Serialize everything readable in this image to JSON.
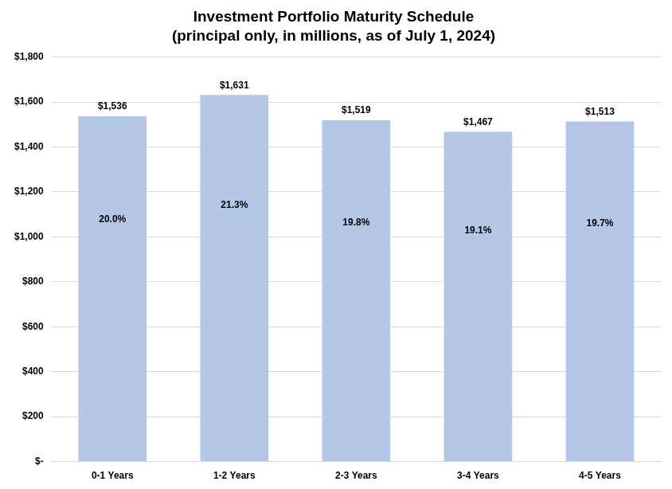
{
  "chart_data": {
    "type": "bar",
    "title": "Investment Portfolio Maturity Schedule",
    "subtitle": "(principal only, in millions, as of July 1, 2024)",
    "categories": [
      "0-1 Years",
      "1-2 Years",
      "2-3 Years",
      "3-4 Years",
      "4-5 Years"
    ],
    "values": [
      1536,
      1631,
      1519,
      1467,
      1513
    ],
    "value_labels": [
      "$1,536",
      "$1,631",
      "$1,519",
      "$1,467",
      "$1,513"
    ],
    "shares": {
      "values": [
        20.0,
        21.3,
        19.8,
        19.1,
        19.7
      ],
      "value_labels": [
        "20.0%",
        "21.3%",
        "19.8%",
        "19.1%",
        "19.7%"
      ]
    },
    "color": "#b4c7e7",
    "ylim": [
      0,
      1800
    ],
    "yticks": [
      {
        "value": 0,
        "label": "$-"
      },
      {
        "value": 200,
        "label": "$200"
      },
      {
        "value": 400,
        "label": "$400"
      },
      {
        "value": 600,
        "label": "$600"
      },
      {
        "value": 800,
        "label": "$800"
      },
      {
        "value": 1000,
        "label": "$1,000"
      },
      {
        "value": 1200,
        "label": "$1,200"
      },
      {
        "value": 1400,
        "label": "$1,400"
      },
      {
        "value": 1600,
        "label": "$1,600"
      },
      {
        "value": 1800,
        "label": "$1,800"
      }
    ],
    "grid": true,
    "data_labels": true
  }
}
